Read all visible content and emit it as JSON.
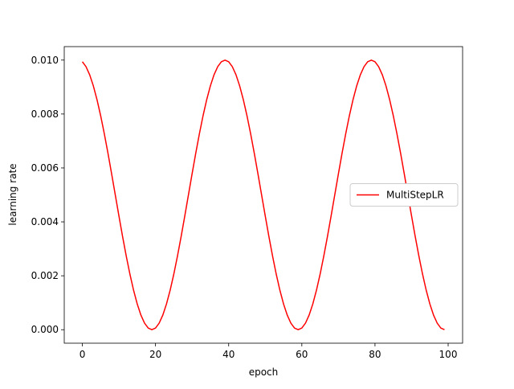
{
  "chart_data": {
    "type": "line",
    "x_label": "epoch",
    "y_label": "learning rate",
    "x": [
      0,
      1,
      2,
      3,
      4,
      5,
      6,
      7,
      8,
      9,
      10,
      11,
      12,
      13,
      14,
      15,
      16,
      17,
      18,
      19,
      20,
      21,
      22,
      23,
      24,
      25,
      26,
      27,
      28,
      29,
      30,
      31,
      32,
      33,
      34,
      35,
      36,
      37,
      38,
      39,
      40,
      41,
      42,
      43,
      44,
      45,
      46,
      47,
      48,
      49,
      50,
      51,
      52,
      53,
      54,
      55,
      56,
      57,
      58,
      59,
      60,
      61,
      62,
      63,
      64,
      65,
      66,
      67,
      68,
      69,
      70,
      71,
      72,
      73,
      74,
      75,
      76,
      77,
      78,
      79,
      80,
      81,
      82,
      83,
      84,
      85,
      86,
      87,
      88,
      89,
      90,
      91,
      92,
      93,
      94,
      95,
      96,
      97,
      98,
      99
    ],
    "series": [
      {
        "name": "MultiStepLR",
        "color": "#ff0000",
        "values": [
          0.009938,
          0.009755,
          0.009455,
          0.009045,
          0.008536,
          0.007939,
          0.00727,
          0.006545,
          0.005782,
          0.005,
          0.004218,
          0.003455,
          0.00273,
          0.002061,
          0.001464,
          0.000955,
          0.000545,
          0.000245,
          6.2e-05,
          0,
          6.2e-05,
          0.000245,
          0.000545,
          0.000955,
          0.001464,
          0.002061,
          0.00273,
          0.003455,
          0.004218,
          0.005,
          0.005782,
          0.006545,
          0.00727,
          0.007939,
          0.008536,
          0.009045,
          0.009455,
          0.009755,
          0.009938,
          0.01,
          0.009938,
          0.009755,
          0.009455,
          0.009045,
          0.008536,
          0.007939,
          0.00727,
          0.006545,
          0.005782,
          0.005,
          0.004218,
          0.003455,
          0.00273,
          0.002061,
          0.001464,
          0.000955,
          0.000545,
          0.000245,
          6.2e-05,
          0,
          6.2e-05,
          0.000245,
          0.000545,
          0.000955,
          0.001464,
          0.002061,
          0.00273,
          0.003455,
          0.004218,
          0.005,
          0.005782,
          0.006545,
          0.00727,
          0.007939,
          0.008536,
          0.009045,
          0.009455,
          0.009755,
          0.009938,
          0.01,
          0.009938,
          0.009755,
          0.009455,
          0.009045,
          0.008536,
          0.007939,
          0.00727,
          0.006545,
          0.005782,
          0.005,
          0.004218,
          0.003455,
          0.00273,
          0.002061,
          0.001464,
          0.000955,
          0.000545,
          0.000245,
          6.2e-05,
          0
        ]
      }
    ],
    "xlim": [
      -4.95,
      103.95
    ],
    "xticks": [
      0,
      20,
      40,
      60,
      80,
      100
    ],
    "ylim": [
      -0.0005,
      0.0105
    ],
    "yticks": [
      {
        "value": 0,
        "label": "0.000"
      },
      {
        "value": 0.002,
        "label": "0.002"
      },
      {
        "value": 0.004,
        "label": "0.004"
      },
      {
        "value": 0.006,
        "label": "0.006"
      },
      {
        "value": 0.008,
        "label": "0.008"
      },
      {
        "value": 0.01,
        "label": "0.010"
      }
    ],
    "legend": "center right"
  }
}
